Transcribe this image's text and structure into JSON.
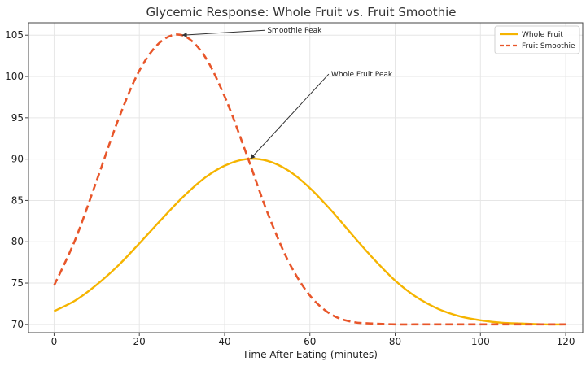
{
  "chart_data": {
    "type": "line",
    "title": "Glycemic Response: Whole Fruit vs. Fruit Smoothie",
    "xlabel": "Time After Eating (minutes)",
    "ylabel": "",
    "xlim": [
      -6,
      124
    ],
    "ylim": [
      69,
      106.5
    ],
    "x_ticks": [
      0,
      20,
      40,
      60,
      80,
      100,
      120
    ],
    "y_ticks": [
      70,
      75,
      80,
      85,
      90,
      95,
      100,
      105
    ],
    "grid": true,
    "legend_position": "top-right",
    "x": [
      0,
      5,
      10,
      15,
      20,
      25,
      30,
      35,
      40,
      45,
      50,
      55,
      60,
      65,
      70,
      75,
      80,
      85,
      90,
      95,
      100,
      105,
      110,
      115,
      120
    ],
    "series": [
      {
        "name": "Whole Fruit",
        "color": "#f5b400",
        "style": "solid",
        "values": [
          71.6,
          72.9,
          74.8,
          77.1,
          79.8,
          82.6,
          85.3,
          87.6,
          89.2,
          90.0,
          89.8,
          88.6,
          86.5,
          83.8,
          80.8,
          77.9,
          75.3,
          73.3,
          71.9,
          71.0,
          70.5,
          70.2,
          70.1,
          70.0,
          70.0
        ]
      },
      {
        "name": "Fruit Smoothie",
        "color": "#e8562a",
        "style": "dashed",
        "values": [
          74.7,
          80.3,
          87.4,
          94.7,
          100.7,
          104.2,
          105.0,
          102.7,
          97.6,
          90.8,
          83.6,
          77.6,
          73.5,
          71.2,
          70.3,
          70.1,
          70.0,
          70.0,
          70.0,
          70.0,
          70.0,
          70.0,
          70.0,
          70.0,
          70.0
        ]
      }
    ],
    "annotations": [
      {
        "text": "Smoothie Peak",
        "x": 30,
        "y": 105.0,
        "text_x": 50,
        "text_y": 105.3
      },
      {
        "text": "Whole Fruit Peak",
        "x": 46,
        "y": 90.0,
        "text_x": 65,
        "text_y": 100.0
      }
    ]
  }
}
